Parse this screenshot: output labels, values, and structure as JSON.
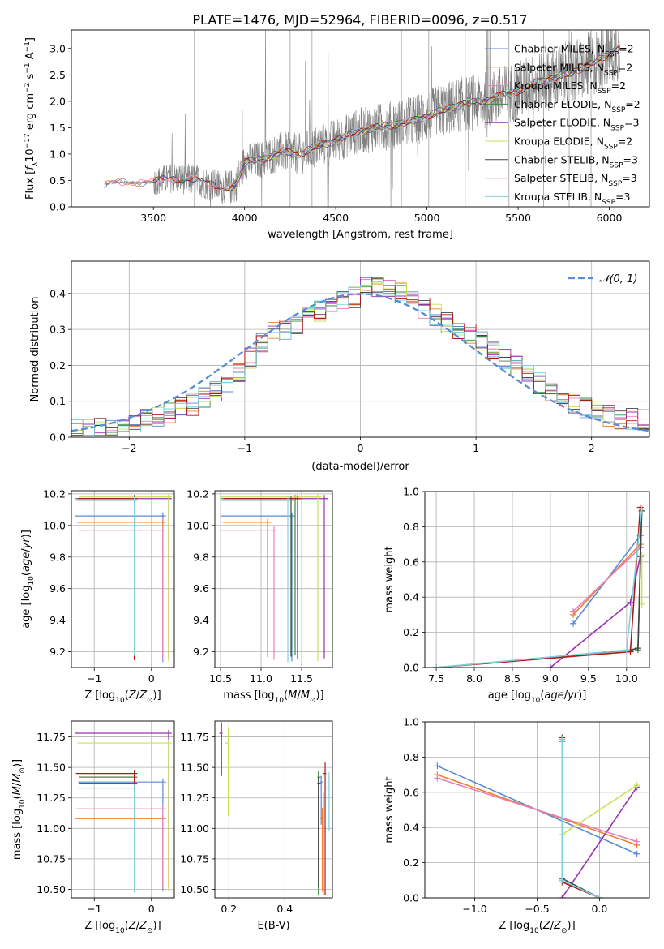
{
  "figure": {
    "title": "PLATE=1476, MJD=52964, FIBERID=0096, z=0.517"
  },
  "colors": {
    "Chabrier MILES": "#5b8bd4",
    "Salpeter MILES": "#f07f2a",
    "Kroupa MILES": "#e87fb8",
    "Chabrier ELODIE": "#3a8a3a",
    "Salpeter ELODIE": "#9b31b3",
    "Kroupa ELODIE": "#c9e05a",
    "Chabrier STELIB": "#444444",
    "Salpeter STELIB": "#b01818",
    "Kroupa STELIB": "#7fd1dd",
    "data": "#808080",
    "gaussian": "#5b8bd4"
  },
  "chart_data": [
    {
      "id": "spectrum",
      "type": "line",
      "xlabel": "wavelength [Angstrom, rest frame]",
      "ylabel": "Flux [f_λ 10^-17 erg cm^-2 s^-1 A^-1]",
      "xlim": [
        3050,
        6220
      ],
      "ylim": [
        0,
        3.35
      ],
      "xticks": [
        3500,
        4000,
        4500,
        5000,
        5500,
        6000
      ],
      "yticks": [
        0.0,
        0.5,
        1.0,
        1.5,
        2.0,
        2.5,
        3.0
      ],
      "grid": false,
      "legend_position": "top-right",
      "legend": [
        {
          "name": "Chabrier MILES",
          "nssp": "2"
        },
        {
          "name": "Salpeter MILES",
          "nssp": "2"
        },
        {
          "name": "Kroupa MILES",
          "nssp": "2"
        },
        {
          "name": "Chabrier ELODIE",
          "nssp": "2"
        },
        {
          "name": "Salpeter ELODIE",
          "nssp": "3"
        },
        {
          "name": "Kroupa ELODIE",
          "nssp": "2"
        },
        {
          "name": "Chabrier STELIB",
          "nssp": "3"
        },
        {
          "name": "Salpeter STELIB",
          "nssp": "3"
        },
        {
          "name": "Kroupa STELIB",
          "nssp": "3"
        }
      ],
      "continuum": {
        "x": [
          3230,
          3300,
          3400,
          3500,
          3600,
          3700,
          3800,
          3900,
          3950,
          4000,
          4100,
          4200,
          4300,
          4400,
          4500,
          4600,
          4700,
          4800,
          4900,
          5000,
          5100,
          5200,
          5300,
          5400,
          5500,
          5600,
          5700,
          5800,
          5900,
          6000,
          6060
        ],
        "y": [
          0.42,
          0.47,
          0.46,
          0.47,
          0.55,
          0.52,
          0.45,
          0.35,
          0.4,
          0.85,
          0.9,
          1.05,
          1.0,
          1.15,
          1.25,
          1.42,
          1.48,
          1.55,
          1.6,
          1.72,
          1.85,
          1.95,
          2.0,
          2.1,
          2.2,
          2.35,
          2.45,
          2.55,
          2.7,
          2.9,
          3.05
        ]
      }
    },
    {
      "id": "residuals",
      "type": "line",
      "xlabel": "(data-model)/error",
      "ylabel": "Normed distribution",
      "xlim": [
        -2.5,
        2.5
      ],
      "ylim": [
        0,
        0.49
      ],
      "xticks": [
        -2,
        -1,
        0,
        1,
        2
      ],
      "yticks": [
        0.0,
        0.1,
        0.2,
        0.3,
        0.4
      ],
      "grid": true,
      "legend_position": "top-right",
      "gaussian_label": "𝒩(0, 1)",
      "hist_bins": [
        -2.5,
        2.5,
        0.1
      ],
      "hist_envelope": [
        0.02,
        0.02,
        0.025,
        0.03,
        0.035,
        0.04,
        0.05,
        0.055,
        0.07,
        0.08,
        0.09,
        0.11,
        0.13,
        0.15,
        0.18,
        0.22,
        0.26,
        0.29,
        0.3,
        0.31,
        0.33,
        0.35,
        0.36,
        0.38,
        0.39,
        0.42,
        0.42,
        0.41,
        0.4,
        0.38,
        0.36,
        0.34,
        0.32,
        0.3,
        0.29,
        0.27,
        0.25,
        0.22,
        0.2,
        0.18,
        0.15,
        0.13,
        0.11,
        0.09,
        0.08,
        0.07,
        0.06,
        0.05,
        0.05,
        0.05
      ]
    },
    {
      "id": "age_vs_Z",
      "type": "scatter",
      "xlabel": "Z [log10(Z/Z⊙)]",
      "ylabel": "age [log10(age/yr)]",
      "xlim": [
        -1.4,
        0.4
      ],
      "ylim": [
        9.1,
        10.22
      ],
      "xticks": [
        -1,
        0
      ],
      "yticks": [
        9.2,
        9.4,
        9.6,
        9.8,
        10.0,
        10.2
      ],
      "grid": true
    },
    {
      "id": "age_vs_mass",
      "type": "scatter",
      "xlabel": "mass [log10(M/M⊙)]",
      "ylabel": "",
      "xlim": [
        10.43,
        11.88
      ],
      "ylim": [
        9.1,
        10.22
      ],
      "xticks": [
        10.5,
        11.0,
        11.5
      ],
      "yticks": [
        9.2,
        9.4,
        9.6,
        9.8,
        10.0,
        10.2
      ],
      "grid": true
    },
    {
      "id": "weight_vs_age",
      "type": "line",
      "xlabel": "age [log10(age/yr)]",
      "ylabel": "mass weight",
      "xlim": [
        7.35,
        10.3
      ],
      "ylim": [
        0,
        1.0
      ],
      "xticks": [
        7.5,
        8.0,
        8.5,
        9.0,
        9.5,
        10.0
      ],
      "yticks": [
        0.0,
        0.2,
        0.4,
        0.6,
        0.8,
        1.0
      ],
      "grid": true,
      "series": [
        {
          "key": "Chabrier MILES",
          "x": [
            9.3,
            10.18
          ],
          "y": [
            0.25,
            0.75
          ]
        },
        {
          "key": "Salpeter MILES",
          "x": [
            9.3,
            10.18
          ],
          "y": [
            0.3,
            0.7
          ]
        },
        {
          "key": "Kroupa MILES",
          "x": [
            9.3,
            10.18
          ],
          "y": [
            0.32,
            0.68
          ]
        },
        {
          "key": "Chabrier ELODIE",
          "x": [
            10.15,
            10.2
          ],
          "y": [
            0.1,
            0.9
          ]
        },
        {
          "key": "Salpeter ELODIE",
          "x": [
            9.0,
            10.05,
            10.18
          ],
          "y": [
            0.0,
            0.37,
            0.63
          ]
        },
        {
          "key": "Kroupa ELODIE",
          "x": [
            10.2,
            10.2
          ],
          "y": [
            0.36,
            0.64
          ]
        },
        {
          "key": "Chabrier STELIB",
          "x": [
            7.5,
            10.05,
            10.15,
            10.2
          ],
          "y": [
            0.0,
            0.1,
            0.11,
            0.89
          ]
        },
        {
          "key": "Salpeter STELIB",
          "x": [
            7.5,
            10.05,
            10.18
          ],
          "y": [
            0.0,
            0.09,
            0.91
          ]
        },
        {
          "key": "Kroupa STELIB",
          "x": [
            7.5,
            10.0,
            10.2
          ],
          "y": [
            0.0,
            0.1,
            0.9
          ]
        }
      ]
    },
    {
      "id": "mass_vs_Z",
      "type": "scatter",
      "xlabel": "Z [log10(Z/Z⊙)]",
      "ylabel": "mass [log10(M/M⊙)]",
      "xlim": [
        -1.4,
        0.4
      ],
      "ylim": [
        10.43,
        11.88
      ],
      "xticks": [
        -1,
        0
      ],
      "yticks": [
        10.5,
        10.75,
        11.0,
        11.25,
        11.5,
        11.75
      ],
      "grid": true
    },
    {
      "id": "mass_vs_ebv",
      "type": "scatter",
      "xlabel": "E(B-V)",
      "ylabel": "",
      "xlim": [
        0.15,
        0.57
      ],
      "ylim": [
        10.43,
        11.88
      ],
      "xticks": [
        0.2,
        0.4
      ],
      "yticks": [
        10.5,
        10.75,
        11.0,
        11.25,
        11.5,
        11.75
      ],
      "grid": true
    },
    {
      "id": "weight_vs_Z",
      "type": "line",
      "xlabel": "Z [log10(Z/Z⊙)]",
      "ylabel": "mass weight",
      "xlim": [
        -1.4,
        0.4
      ],
      "ylim": [
        0,
        1.0
      ],
      "xticks": [
        -1.0,
        -0.5,
        0.0
      ],
      "yticks": [
        0.0,
        0.2,
        0.4,
        0.6,
        0.8,
        1.0
      ],
      "grid": true,
      "series": [
        {
          "key": "Chabrier MILES",
          "x": [
            -1.3,
            0.3
          ],
          "y": [
            0.75,
            0.25
          ]
        },
        {
          "key": "Salpeter MILES",
          "x": [
            -1.3,
            0.3
          ],
          "y": [
            0.7,
            0.3
          ]
        },
        {
          "key": "Kroupa MILES",
          "x": [
            -1.3,
            0.3
          ],
          "y": [
            0.68,
            0.32
          ]
        },
        {
          "key": "Chabrier ELODIE",
          "x": [
            -0.3,
            -0.3
          ],
          "y": [
            0.1,
            0.9
          ]
        },
        {
          "key": "Salpeter ELODIE",
          "x": [
            -0.3,
            0.3
          ],
          "y": [
            0.0,
            0.63
          ]
        },
        {
          "key": "Kroupa ELODIE",
          "x": [
            -0.3,
            0.3
          ],
          "y": [
            0.36,
            0.64
          ]
        },
        {
          "key": "Chabrier STELIB",
          "x": [
            -0.3,
            -0.3,
            0.0
          ],
          "y": [
            0.89,
            0.11,
            0.0
          ]
        },
        {
          "key": "Salpeter STELIB",
          "x": [
            -0.3,
            -0.3,
            0.0
          ],
          "y": [
            0.91,
            0.09,
            0.0
          ]
        },
        {
          "key": "Kroupa STELIB",
          "x": [
            -0.3,
            -0.3,
            0.0
          ],
          "y": [
            0.9,
            0.1,
            0.0
          ]
        }
      ]
    }
  ],
  "params": {
    "Chabrier MILES": {
      "Z": 0.2,
      "age": 10.06,
      "mass": 11.38,
      "ebv": 0.53,
      "nssp": 2
    },
    "Salpeter MILES": {
      "Z": 0.2,
      "age": 10.02,
      "mass": 11.08,
      "ebv": 0.53,
      "nssp": 2
    },
    "Kroupa MILES": {
      "Z": 0.2,
      "age": 9.97,
      "mass": 11.16,
      "ebv": 0.53,
      "nssp": 2
    },
    "Chabrier ELODIE": {
      "Z": -0.3,
      "age": 10.17,
      "mass": 11.42,
      "ebv": 0.52,
      "nssp": 2
    },
    "Salpeter ELODIE": {
      "Z": 0.3,
      "age": 10.17,
      "mass": 11.78,
      "ebv": 0.17,
      "nssp": 3
    },
    "Kroupa ELODIE": {
      "Z": 0.3,
      "age": 10.18,
      "mass": 11.7,
      "ebv": 0.19,
      "nssp": 2
    },
    "Chabrier STELIB": {
      "Z": -0.3,
      "age": 10.16,
      "mass": 11.37,
      "ebv": 0.52,
      "nssp": 3
    },
    "Salpeter STELIB": {
      "Z": -0.3,
      "age": 10.17,
      "mass": 11.45,
      "ebv": 0.54,
      "nssp": 3
    },
    "Kroupa STELIB": {
      "Z": -0.3,
      "age": 10.16,
      "mass": 11.33,
      "ebv": 0.55,
      "nssp": 3
    }
  }
}
